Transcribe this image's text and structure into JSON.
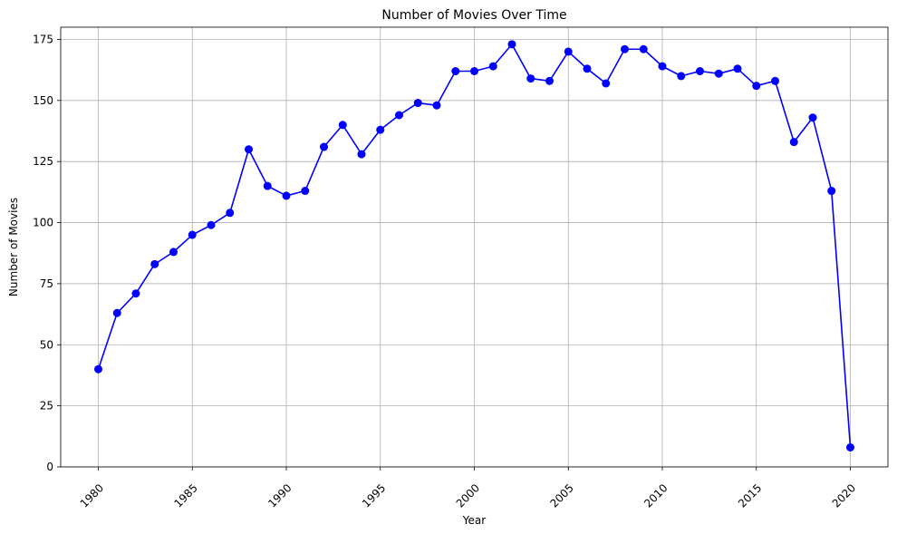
{
  "chart_data": {
    "type": "line",
    "title": "Number of Movies Over Time",
    "xlabel": "Year",
    "ylabel": "Number of Movies",
    "xlim": [
      1978,
      2022
    ],
    "ylim": [
      0,
      180
    ],
    "xticks": [
      1980,
      1985,
      1990,
      1995,
      2000,
      2005,
      2010,
      2015,
      2020
    ],
    "yticks": [
      0,
      25,
      50,
      75,
      100,
      125,
      150,
      175
    ],
    "xtick_rotation": 45,
    "grid": true,
    "line_color": "#0000ff",
    "marker": "circle",
    "x": [
      1980,
      1981,
      1982,
      1983,
      1984,
      1985,
      1986,
      1987,
      1988,
      1989,
      1990,
      1991,
      1992,
      1993,
      1994,
      1995,
      1996,
      1997,
      1998,
      1999,
      2000,
      2001,
      2002,
      2003,
      2004,
      2005,
      2006,
      2007,
      2008,
      2009,
      2010,
      2011,
      2012,
      2013,
      2014,
      2015,
      2016,
      2017,
      2018,
      2019,
      2020
    ],
    "y": [
      40,
      63,
      71,
      83,
      88,
      95,
      99,
      104,
      130,
      115,
      111,
      113,
      131,
      140,
      128,
      138,
      144,
      149,
      148,
      162,
      162,
      164,
      173,
      159,
      158,
      170,
      163,
      157,
      171,
      171,
      164,
      160,
      162,
      161,
      163,
      156,
      158,
      133,
      143,
      113,
      8
    ]
  }
}
